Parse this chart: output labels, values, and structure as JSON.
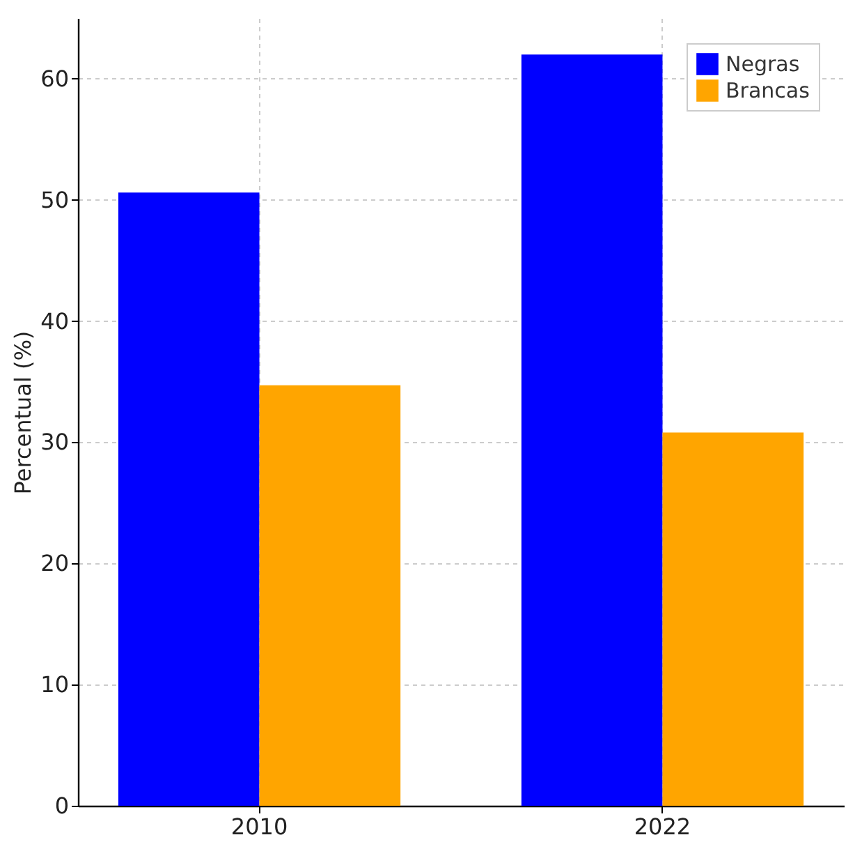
{
  "chart_data": {
    "type": "bar",
    "ylabel": "Percentual (%)",
    "categories": [
      "2010",
      "2022"
    ],
    "series": [
      {
        "name": "Negras",
        "color": "#0000ff",
        "values": [
          50.6,
          62
        ]
      },
      {
        "name": "Brancas",
        "color": "#ffa500",
        "values": [
          34.7,
          30.8
        ]
      }
    ],
    "ylim": [
      0,
      65
    ],
    "yticks": [
      0,
      10,
      20,
      30,
      40,
      50,
      60
    ],
    "grid": true,
    "legend": "top right"
  }
}
